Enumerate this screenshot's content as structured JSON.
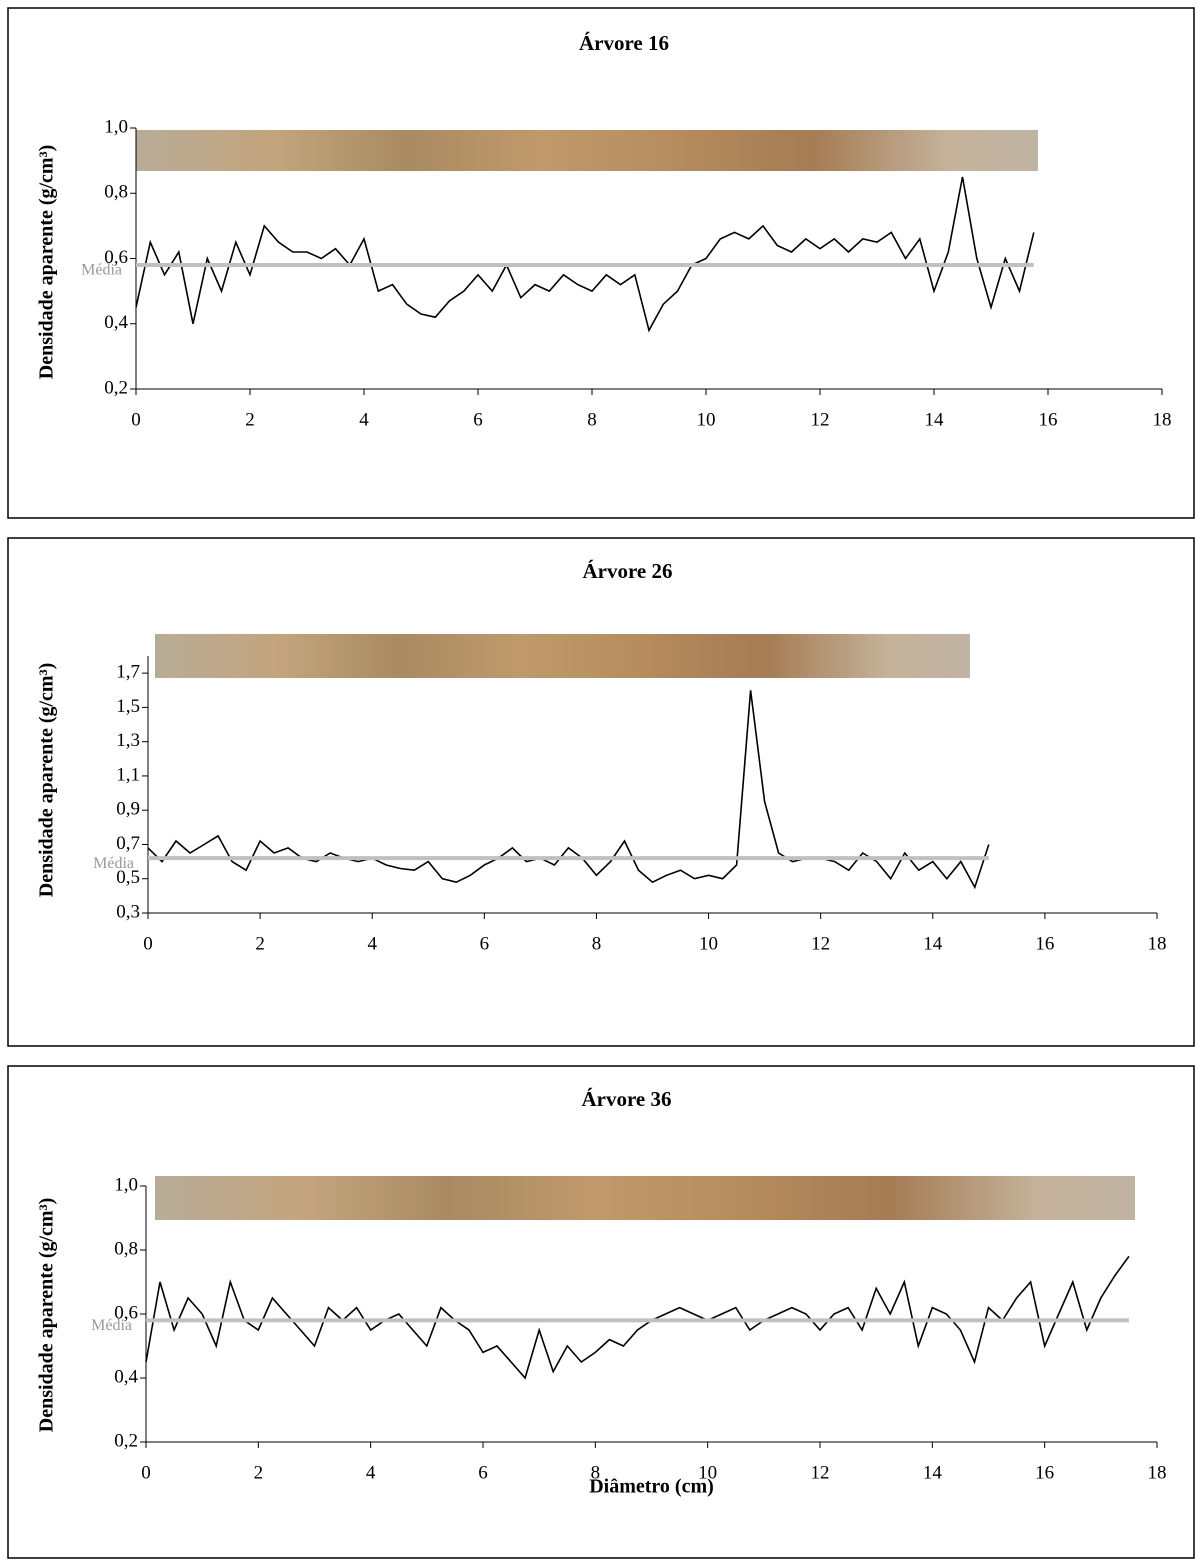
{
  "chart_data": [
    {
      "type": "line",
      "title": "Árvore 16",
      "ylabel": "Densidade aparente (g/cm³)",
      "x": [
        0,
        0.25,
        0.5,
        0.75,
        1,
        1.25,
        1.5,
        1.75,
        2,
        2.25,
        2.5,
        2.75,
        3,
        3.25,
        3.5,
        3.75,
        4,
        4.25,
        4.5,
        4.75,
        5,
        5.25,
        5.5,
        5.75,
        6,
        6.25,
        6.5,
        6.75,
        7,
        7.25,
        7.5,
        7.75,
        8,
        8.25,
        8.5,
        8.75,
        9,
        9.25,
        9.5,
        9.75,
        10,
        10.25,
        10.5,
        10.75,
        11,
        11.25,
        11.5,
        11.75,
        12,
        12.25,
        12.5,
        12.75,
        13,
        13.25,
        13.5,
        13.75,
        14,
        14.25,
        14.5,
        14.75,
        15,
        15.25,
        15.5,
        15.75
      ],
      "series": [
        {
          "color": "#000000",
          "values": [
            0.45,
            0.65,
            0.55,
            0.62,
            0.4,
            0.6,
            0.5,
            0.65,
            0.55,
            0.7,
            0.65,
            0.62,
            0.62,
            0.6,
            0.63,
            0.58,
            0.66,
            0.5,
            0.52,
            0.46,
            0.43,
            0.42,
            0.47,
            0.5,
            0.55,
            0.5,
            0.58,
            0.48,
            0.52,
            0.5,
            0.55,
            0.52,
            0.5,
            0.55,
            0.52,
            0.55,
            0.38,
            0.46,
            0.5,
            0.58,
            0.6,
            0.66,
            0.68,
            0.66,
            0.7,
            0.64,
            0.62,
            0.66,
            0.63,
            0.66,
            0.62,
            0.66,
            0.65,
            0.68,
            0.6,
            0.66,
            0.5,
            0.62,
            0.85,
            0.6,
            0.45,
            0.6,
            0.5,
            0.68
          ]
        }
      ],
      "mean": {
        "label": "Média",
        "value": 0.58,
        "color": "#c0c0c0"
      },
      "xlim": [
        0,
        18
      ],
      "xticks": [
        0,
        2,
        4,
        6,
        8,
        10,
        12,
        14,
        16,
        18
      ],
      "ylim": [
        0.2,
        1.0
      ],
      "yticks": [
        {
          "value": 0.2,
          "label": "0,2"
        },
        {
          "value": 0.4,
          "label": "0,4"
        },
        {
          "value": 0.6,
          "label": "0,6"
        },
        {
          "value": 0.8,
          "label": "0,8"
        },
        {
          "value": 1.0,
          "label": "1,0"
        }
      ]
    },
    {
      "type": "line",
      "title": "Árvore 26",
      "ylabel": "Densidade aparente (g/cm³)",
      "x": [
        0,
        0.25,
        0.5,
        0.75,
        1,
        1.25,
        1.5,
        1.75,
        2,
        2.25,
        2.5,
        2.75,
        3,
        3.25,
        3.5,
        3.75,
        4,
        4.25,
        4.5,
        4.75,
        5,
        5.25,
        5.5,
        5.75,
        6,
        6.25,
        6.5,
        6.75,
        7,
        7.25,
        7.5,
        7.75,
        8,
        8.25,
        8.5,
        8.75,
        9,
        9.25,
        9.5,
        9.75,
        10,
        10.25,
        10.5,
        10.75,
        11,
        11.25,
        11.5,
        11.75,
        12,
        12.25,
        12.5,
        12.75,
        13,
        13.25,
        13.5,
        13.75,
        14,
        14.25,
        14.5,
        14.75,
        15
      ],
      "series": [
        {
          "color": "#000000",
          "values": [
            0.68,
            0.6,
            0.72,
            0.65,
            0.7,
            0.75,
            0.6,
            0.55,
            0.72,
            0.65,
            0.68,
            0.62,
            0.6,
            0.65,
            0.62,
            0.6,
            0.62,
            0.58,
            0.56,
            0.55,
            0.6,
            0.5,
            0.48,
            0.52,
            0.58,
            0.62,
            0.68,
            0.6,
            0.62,
            0.58,
            0.68,
            0.62,
            0.52,
            0.6,
            0.72,
            0.55,
            0.48,
            0.52,
            0.55,
            0.5,
            0.52,
            0.5,
            0.58,
            1.6,
            0.95,
            0.65,
            0.6,
            0.62,
            0.62,
            0.6,
            0.55,
            0.65,
            0.6,
            0.5,
            0.65,
            0.55,
            0.6,
            0.5,
            0.6,
            0.45,
            0.7
          ]
        }
      ],
      "mean": {
        "label": "Média",
        "value": 0.62,
        "color": "#c0c0c0"
      },
      "xlim": [
        0,
        18
      ],
      "xticks": [
        0,
        2,
        4,
        6,
        8,
        10,
        12,
        14,
        16,
        18
      ],
      "ylim": [
        0.3,
        1.8
      ],
      "yticks": [
        {
          "value": 0.3,
          "label": "0,3"
        },
        {
          "value": 0.5,
          "label": "0,5"
        },
        {
          "value": 0.7,
          "label": "0,7"
        },
        {
          "value": 0.9,
          "label": "0,9"
        },
        {
          "value": 1.1,
          "label": "1,1"
        },
        {
          "value": 1.3,
          "label": "1,3"
        },
        {
          "value": 1.5,
          "label": "1,5"
        },
        {
          "value": 1.7,
          "label": "1,7"
        }
      ]
    },
    {
      "type": "line",
      "title": "Árvore 36",
      "ylabel": "Densidade aparente (g/cm³)",
      "xlabel": "Diâmetro (cm)",
      "x": [
        0,
        0.25,
        0.5,
        0.75,
        1,
        1.25,
        1.5,
        1.75,
        2,
        2.25,
        2.5,
        2.75,
        3,
        3.25,
        3.5,
        3.75,
        4,
        4.25,
        4.5,
        4.75,
        5,
        5.25,
        5.5,
        5.75,
        6,
        6.25,
        6.5,
        6.75,
        7,
        7.25,
        7.5,
        7.75,
        8,
        8.25,
        8.5,
        8.75,
        9,
        9.25,
        9.5,
        9.75,
        10,
        10.25,
        10.5,
        10.75,
        11,
        11.25,
        11.5,
        11.75,
        12,
        12.25,
        12.5,
        12.75,
        13,
        13.25,
        13.5,
        13.75,
        14,
        14.25,
        14.5,
        14.75,
        15,
        15.25,
        15.5,
        15.75,
        16,
        16.25,
        16.5,
        16.75,
        17,
        17.25,
        17.5
      ],
      "series": [
        {
          "color": "#000000",
          "values": [
            0.45,
            0.7,
            0.55,
            0.65,
            0.6,
            0.5,
            0.7,
            0.58,
            0.55,
            0.65,
            0.6,
            0.55,
            0.5,
            0.62,
            0.58,
            0.62,
            0.55,
            0.58,
            0.6,
            0.55,
            0.5,
            0.62,
            0.58,
            0.55,
            0.48,
            0.5,
            0.45,
            0.4,
            0.55,
            0.42,
            0.5,
            0.45,
            0.48,
            0.52,
            0.5,
            0.55,
            0.58,
            0.6,
            0.62,
            0.6,
            0.58,
            0.6,
            0.62,
            0.55,
            0.58,
            0.6,
            0.62,
            0.6,
            0.55,
            0.6,
            0.62,
            0.55,
            0.68,
            0.6,
            0.7,
            0.5,
            0.62,
            0.6,
            0.55,
            0.45,
            0.62,
            0.58,
            0.65,
            0.7,
            0.5,
            0.6,
            0.7,
            0.55,
            0.65,
            0.72,
            0.78
          ]
        }
      ],
      "mean": {
        "label": "Média",
        "value": 0.58,
        "color": "#c0c0c0"
      },
      "xlim": [
        0,
        18
      ],
      "xticks": [
        0,
        2,
        4,
        6,
        8,
        10,
        12,
        14,
        16,
        18
      ],
      "ylim": [
        0.2,
        1.0
      ],
      "yticks": [
        {
          "value": 0.2,
          "label": "0,2"
        },
        {
          "value": 0.4,
          "label": "0,4"
        },
        {
          "value": 0.6,
          "label": "0,6"
        },
        {
          "value": 0.8,
          "label": "0,8"
        },
        {
          "value": 1.0,
          "label": "1,0"
        }
      ]
    }
  ]
}
